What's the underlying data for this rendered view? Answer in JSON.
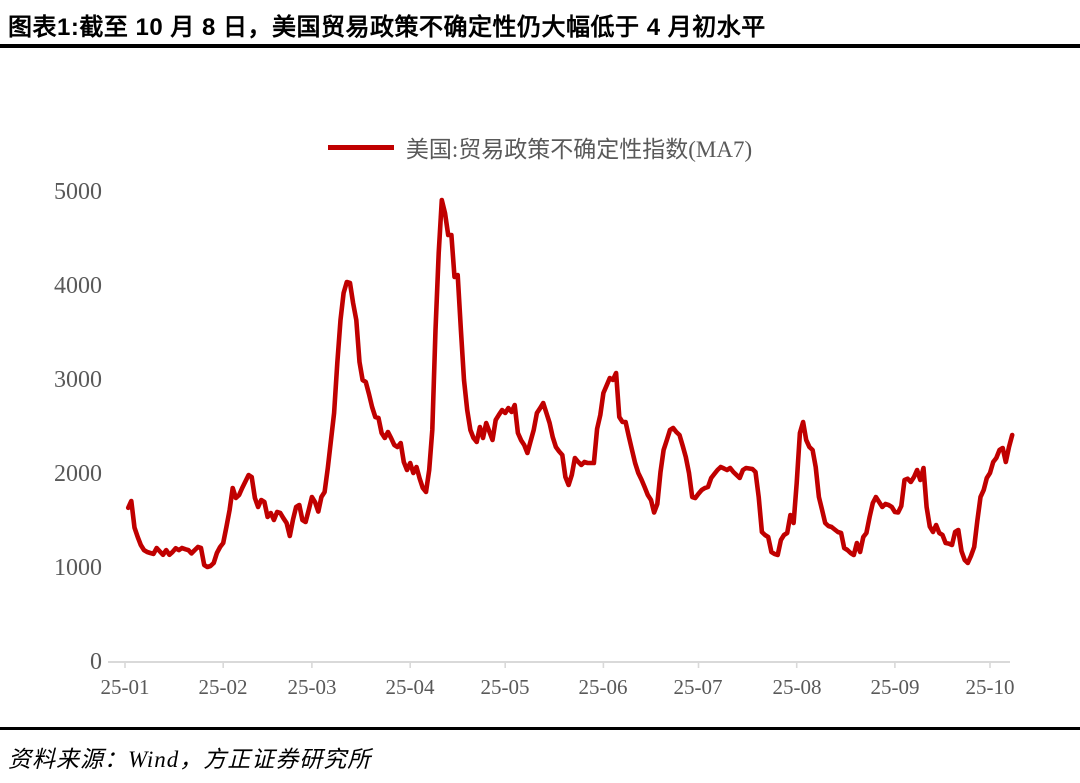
{
  "header": {
    "title": "图表1:截至 10 月 8 日，美国贸易政策不确定性仍大幅低于 4 月初水平"
  },
  "legend": {
    "label": "美国:贸易政策不确定性指数(MA7)",
    "color": "#C00000"
  },
  "footer": {
    "source": "资料来源：Wind，方正证券研究所"
  },
  "chart_data": {
    "type": "line",
    "title": "图表1:截至 10 月 8 日，美国贸易政策不确定性仍大幅低于 4 月初水平",
    "series_name": "美国:贸易政策不确定性指数(MA7)",
    "line_color": "#C00000",
    "axis_color": "#D9D9D9",
    "label_color": "#595959",
    "ylim": [
      0,
      5000
    ],
    "y_ticks": [
      5000,
      4000,
      3000,
      2000,
      1000,
      0
    ],
    "x_tick_labels": [
      "25-01",
      "25-02",
      "25-03",
      "25-04",
      "25-05",
      "25-06",
      "25-07",
      "25-08",
      "25-09",
      "25-10"
    ],
    "month_day_offsets": [
      0,
      31,
      59,
      90,
      120,
      151,
      181,
      212,
      243,
      273
    ],
    "start_date": "2025-01-02",
    "end_date": "2025-10-08",
    "step_days": 1,
    "grid": false,
    "legend_position": "top-center",
    "values": [
      1640,
      1713,
      1430,
      1330,
      1245,
      1190,
      1170,
      1160,
      1150,
      1213,
      1175,
      1140,
      1190,
      1140,
      1170,
      1210,
      1190,
      1213,
      1200,
      1190,
      1155,
      1190,
      1223,
      1213,
      1032,
      1011,
      1021,
      1053,
      1160,
      1223,
      1266,
      1436,
      1617,
      1851,
      1745,
      1777,
      1851,
      1920,
      1989,
      1968,
      1745,
      1649,
      1723,
      1702,
      1543,
      1585,
      1511,
      1596,
      1585,
      1530,
      1479,
      1340,
      1511,
      1649,
      1670,
      1511,
      1489,
      1620,
      1755,
      1700,
      1600,
      1755,
      1809,
      2064,
      2362,
      2649,
      3181,
      3638,
      3926,
      4043,
      4032,
      3819,
      3638,
      3191,
      3000,
      2979,
      2850,
      2713,
      2606,
      2596,
      2436,
      2383,
      2447,
      2380,
      2309,
      2287,
      2330,
      2128,
      2043,
      2117,
      2011,
      2074,
      1950,
      1851,
      1809,
      2043,
      2468,
      3532,
      4351,
      4915,
      4777,
      4543,
      4543,
      4096,
      4117,
      3532,
      3000,
      2681,
      2468,
      2383,
      2340,
      2500,
      2383,
      2543,
      2450,
      2362,
      2574,
      2630,
      2681,
      2649,
      2702,
      2660,
      2734,
      2436,
      2360,
      2309,
      2223,
      2350,
      2468,
      2649,
      2700,
      2755,
      2650,
      2543,
      2394,
      2287,
      2240,
      2202,
      1968,
      1883,
      1990,
      2170,
      2130,
      2096,
      2128,
      2117,
      2117,
      2117,
      2480,
      2628,
      2862,
      2940,
      3021,
      3000,
      3074,
      2606,
      2553,
      2553,
      2400,
      2255,
      2117,
      2011,
      1940,
      1862,
      1777,
      1723,
      1590,
      1680,
      2021,
      2255,
      2360,
      2468,
      2489,
      2447,
      2415,
      2300,
      2181,
      2011,
      1755,
      1745,
      1790,
      1830,
      1850,
      1862,
      1957,
      2000,
      2043,
      2074,
      2060,
      2043,
      2064,
      2021,
      1990,
      1957,
      2043,
      2064,
      2058,
      2053,
      2021,
      1755,
      1383,
      1351,
      1330,
      1170,
      1150,
      1138,
      1298,
      1351,
      1372,
      1564,
      1479,
      1904,
      2436,
      2553,
      2362,
      2287,
      2255,
      2074,
      1755,
      1617,
      1479,
      1447,
      1436,
      1410,
      1383,
      1372,
      1213,
      1191,
      1160,
      1138,
      1266,
      1170,
      1330,
      1372,
      1543,
      1691,
      1755,
      1702,
      1649,
      1681,
      1670,
      1649,
      1596,
      1590,
      1660,
      1936,
      1950,
      1915,
      1968,
      2043,
      1936,
      2064,
      1649,
      1440,
      1383,
      1457,
      1372,
      1351,
      1266,
      1260,
      1245,
      1383,
      1404,
      1180,
      1085,
      1053,
      1130,
      1223,
      1500,
      1755,
      1830,
      1957,
      2011,
      2128,
      2170,
      2255,
      2277,
      2128,
      2287,
      2415
    ]
  }
}
